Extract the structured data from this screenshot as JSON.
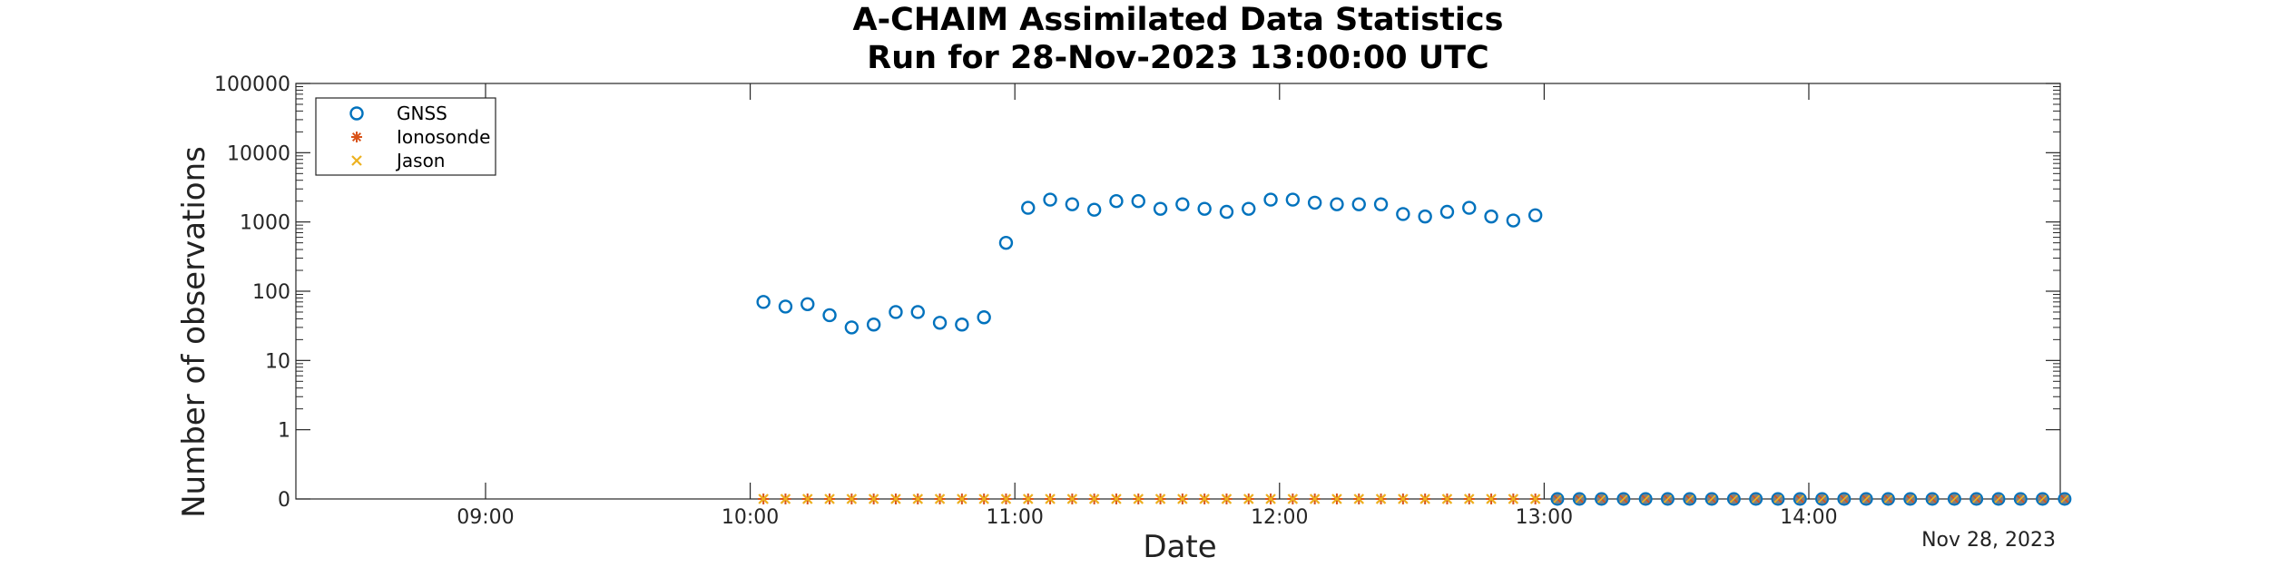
{
  "title_line1": "A-CHAIM Assimilated Data Statistics",
  "title_line2": "Run for 28-Nov-2023 13:00:00 UTC",
  "date_stamp": "Nov 28, 2023",
  "colors": {
    "gnss": "#0072BD",
    "ionosonde": "#D95319",
    "jason": "#EDB120",
    "zero_fill": "#808080"
  },
  "chart_data": {
    "type": "scatter",
    "title": "A-CHAIM Assimilated Data Statistics\nRun for 28-Nov-2023 13:00:00 UTC",
    "xlabel": "Date",
    "ylabel": "Number of observations",
    "y_scale": "log (0 shown at bottom)",
    "x_range": [
      "08:17",
      "14:57"
    ],
    "y_ticks": [
      "0",
      "1",
      "10",
      "100",
      "1000",
      "10000",
      "100000"
    ],
    "x_ticks": [
      "09:00",
      "10:00",
      "11:00",
      "12:00",
      "13:00",
      "14:00"
    ],
    "legend_position": "top-left",
    "grid": false,
    "series": [
      {
        "name": "GNSS",
        "marker": "circle",
        "x": [
          "10:03",
          "10:08",
          "10:13",
          "10:18",
          "10:23",
          "10:28",
          "10:33",
          "10:38",
          "10:43",
          "10:48",
          "10:53",
          "10:58",
          "11:03",
          "11:08",
          "11:13",
          "11:18",
          "11:23",
          "11:28",
          "11:33",
          "11:38",
          "11:43",
          "11:48",
          "11:53",
          "11:58",
          "12:03",
          "12:08",
          "12:13",
          "12:18",
          "12:23",
          "12:28",
          "12:33",
          "12:38",
          "12:43",
          "12:48",
          "12:53",
          "12:58"
        ],
        "y": [
          70,
          60,
          65,
          45,
          30,
          33,
          50,
          50,
          35,
          33,
          42,
          500,
          1600,
          2100,
          1800,
          1500,
          2000,
          2000,
          1550,
          1800,
          1550,
          1400,
          1550,
          2100,
          2100,
          1900,
          1800,
          1800,
          1800,
          1300,
          1200,
          1400,
          1600,
          1200,
          1050,
          1250
        ]
      },
      {
        "name": "Ionosonde",
        "marker": "asterisk",
        "x": [
          "10:03",
          "10:08",
          "10:13",
          "10:18",
          "10:23",
          "10:28",
          "10:33",
          "10:38",
          "10:43",
          "10:48",
          "10:53",
          "10:58",
          "11:03",
          "11:08",
          "11:13",
          "11:18",
          "11:23",
          "11:28",
          "11:33",
          "11:38",
          "11:43",
          "11:48",
          "11:53",
          "11:58",
          "12:03",
          "12:08",
          "12:13",
          "12:18",
          "12:23",
          "12:28",
          "12:33",
          "12:38",
          "12:43",
          "12:48",
          "12:53",
          "12:58"
        ],
        "y": [
          0,
          0,
          0,
          0,
          0,
          0,
          0,
          0,
          0,
          0,
          0,
          0,
          0,
          0,
          0,
          0,
          0,
          0,
          0,
          0,
          0,
          0,
          0,
          0,
          0,
          0,
          0,
          0,
          0,
          0,
          0,
          0,
          0,
          0,
          0,
          0
        ]
      },
      {
        "name": "Jason",
        "marker": "x",
        "x": [
          "10:03",
          "10:08",
          "10:13",
          "10:18",
          "10:23",
          "10:28",
          "10:33",
          "10:38",
          "10:43",
          "10:48",
          "10:53",
          "10:58",
          "11:03",
          "11:08",
          "11:13",
          "11:18",
          "11:23",
          "11:28",
          "11:33",
          "11:38",
          "11:43",
          "11:48",
          "11:53",
          "11:58",
          "12:03",
          "12:08",
          "12:13",
          "12:18",
          "12:23",
          "12:28",
          "12:33",
          "12:38",
          "12:43",
          "12:48",
          "12:53",
          "12:58"
        ],
        "y": [
          0,
          0,
          0,
          0,
          0,
          0,
          0,
          0,
          0,
          0,
          0,
          0,
          0,
          0,
          0,
          0,
          0,
          0,
          0,
          0,
          0,
          0,
          0,
          0,
          0,
          0,
          0,
          0,
          0,
          0,
          0,
          0,
          0,
          0,
          0,
          0
        ]
      },
      {
        "marker": "filled-circle",
        "x": [
          "13:03",
          "13:08",
          "13:13",
          "13:18",
          "13:23",
          "13:28",
          "13:33",
          "13:38",
          "13:43",
          "13:48",
          "13:53",
          "13:58",
          "14:03",
          "14:08",
          "14:13",
          "14:18",
          "14:23",
          "14:28",
          "14:33",
          "14:38",
          "14:43",
          "14:48",
          "14:53",
          "14:58"
        ],
        "y": [
          0,
          0,
          0,
          0,
          0,
          0,
          0,
          0,
          0,
          0,
          0,
          0,
          0,
          0,
          0,
          0,
          0,
          0,
          0,
          0,
          0,
          0,
          0,
          0
        ]
      }
    ]
  }
}
